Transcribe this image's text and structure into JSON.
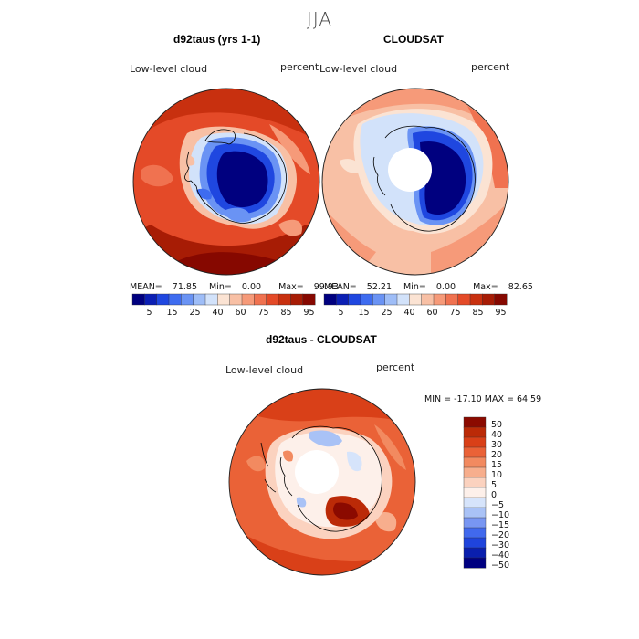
{
  "season": "JJA",
  "colors": {
    "sequential": [
      "#00007f",
      "#0b1fb4",
      "#1f47e0",
      "#3e6cf0",
      "#6a93f4",
      "#9ebdf7",
      "#d2e2fa",
      "#fbe3d3",
      "#f8c0a5",
      "#f69a79",
      "#f07250",
      "#e44a28",
      "#c8300f",
      "#a71c05",
      "#860800"
    ],
    "difference": [
      "#000080",
      "#0a1fae",
      "#1f44dc",
      "#4169ed",
      "#7896f2",
      "#a9c2f6",
      "#d6e4fb",
      "#fdf0ea",
      "#fbd2bf",
      "#f7ae8d",
      "#f28a60",
      "#ea6237",
      "#d94018",
      "#bb2a07",
      "#8b0a00"
    ],
    "coastline": "#000000"
  },
  "panels": [
    {
      "title": "d92taus (yrs 1-1)",
      "field": "Low-level cloud",
      "units": "percent",
      "stats": {
        "mean_label": "MEAN=",
        "mean": "71.85",
        "min_label": "Min=",
        "min": "0.00",
        "max_label": "Max=",
        "max": "99.93"
      }
    },
    {
      "title": "CLOUDSAT",
      "field": "Low-level cloud",
      "units": "percent",
      "stats": {
        "mean_label": "MEAN=",
        "mean": "52.21",
        "min_label": "Min=",
        "min": "0.00",
        "max_label": "Max=",
        "max": "82.65"
      }
    },
    {
      "title": "d92taus - CLOUDSAT",
      "field": "Low-level cloud",
      "units": "percent",
      "stats_line": "MIN = -17.10 MAX =  64.59"
    }
  ],
  "colorbar_ticks": [
    "5",
    "15",
    "25",
    "40",
    "60",
    "75",
    "85",
    "95"
  ],
  "diff_colorbar_ticks": [
    "50",
    "40",
    "30",
    "20",
    "15",
    "10",
    "5",
    "0",
    "−5",
    "−10",
    "−15",
    "−20",
    "−30",
    "−40",
    "−50"
  ]
}
